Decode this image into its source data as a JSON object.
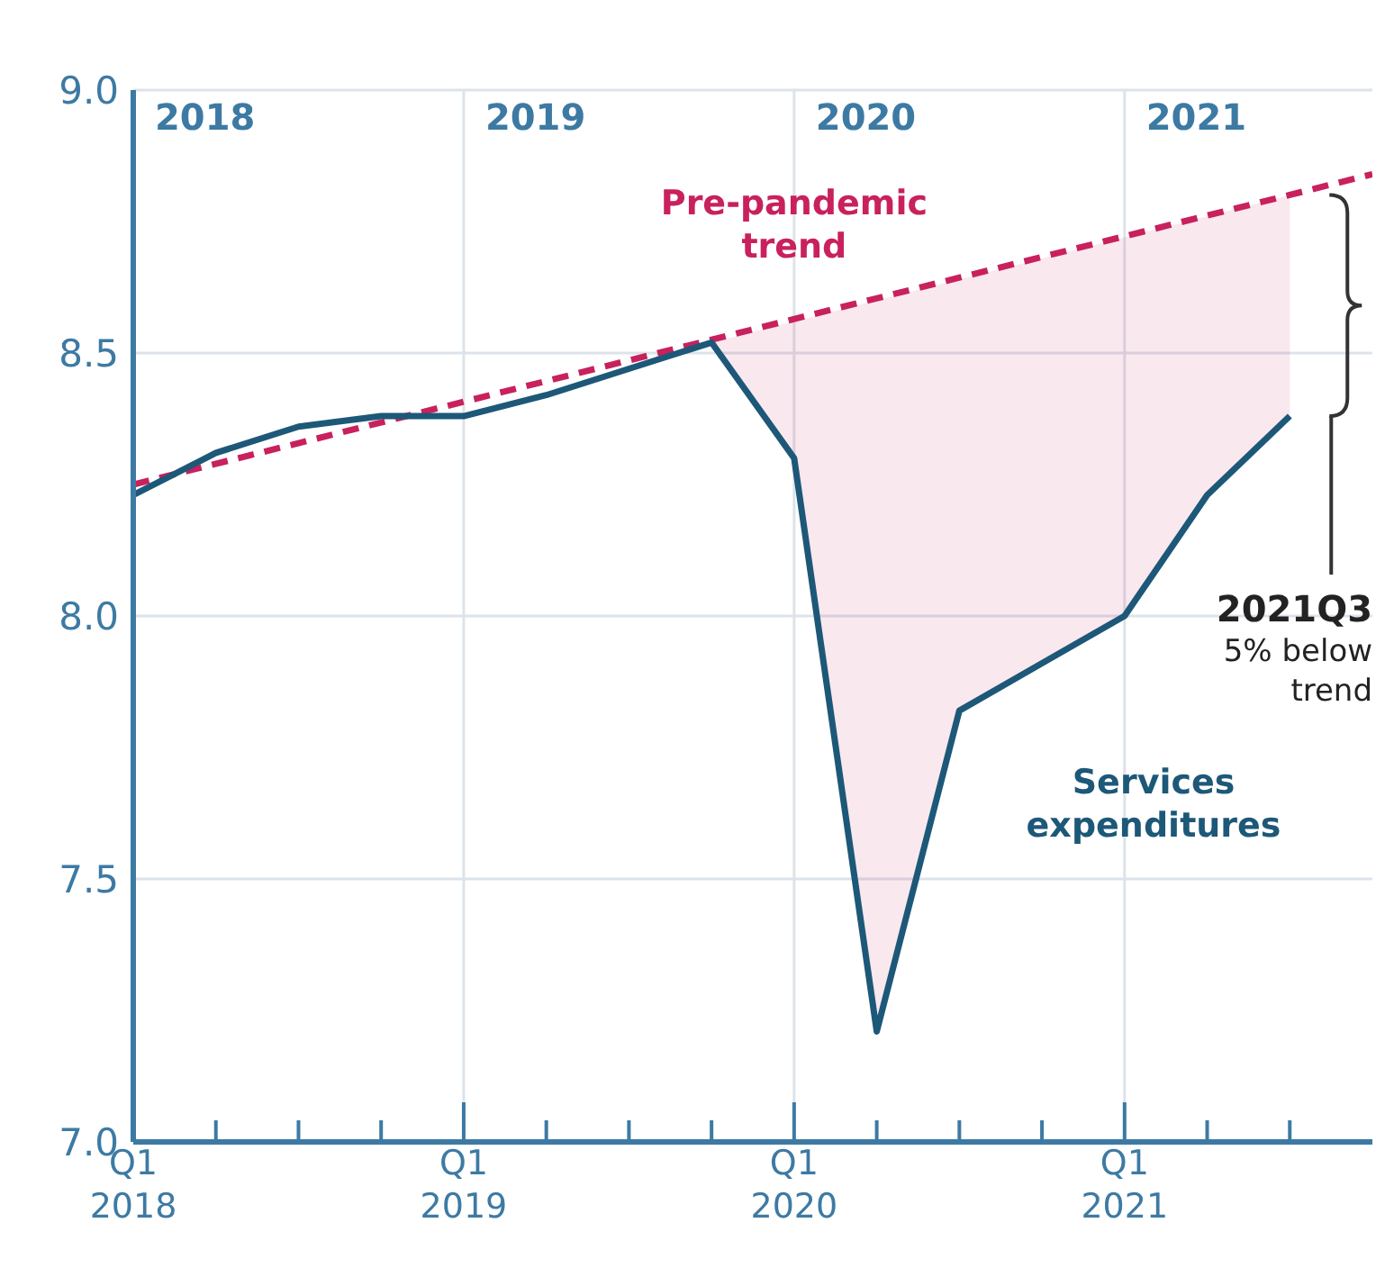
{
  "chart_data": {
    "type": "line",
    "categories": [
      "Q1 2018",
      null,
      null,
      null,
      "Q1 2019",
      null,
      null,
      null,
      "Q1 2020",
      null,
      null,
      null,
      "Q1 2021",
      null,
      null,
      null
    ],
    "ylim": [
      7,
      9
    ],
    "yticks": [
      {
        "value": 7,
        "label": "7.0"
      },
      {
        "value": 7.5,
        "label": "7.5"
      },
      {
        "value": 8,
        "label": "8.0"
      },
      {
        "value": 8.5,
        "label": "8.5"
      },
      {
        "value": 9,
        "label": "9.0"
      }
    ],
    "grid": true,
    "marker": "none",
    "series": [
      {
        "name": "Pre-pandemic trend",
        "color": "#c8215d",
        "line_style": "dashed",
        "values": [
          8.25,
          null,
          null,
          null,
          null,
          null,
          null,
          null,
          null,
          null,
          null,
          null,
          null,
          null,
          null,
          8.84
        ]
      },
      {
        "name": "Services expenditures",
        "color": "#1d5878",
        "line_style": "solid",
        "values": [
          8.23,
          8.31,
          8.36,
          8.38,
          8.38,
          8.42,
          8.47,
          8.52,
          8.3,
          7.21,
          7.82,
          7.91,
          8.0,
          8.23,
          8.38,
          null
        ],
        "lower": [
          null,
          null,
          null,
          null,
          null,
          null,
          null,
          8.52,
          8.3,
          7.21,
          7.82,
          7.91,
          8.0,
          8.23,
          8.38,
          null
        ],
        "upper": [
          null,
          null,
          null,
          null,
          null,
          null,
          null,
          8.52,
          8.56,
          8.6,
          8.64,
          8.68,
          8.72,
          8.76,
          8.8,
          null
        ]
      }
    ],
    "annotations": [
      "2018",
      "2019",
      "2020",
      "2021",
      "2021Q3\n5% below\ntrend"
    ]
  }
}
